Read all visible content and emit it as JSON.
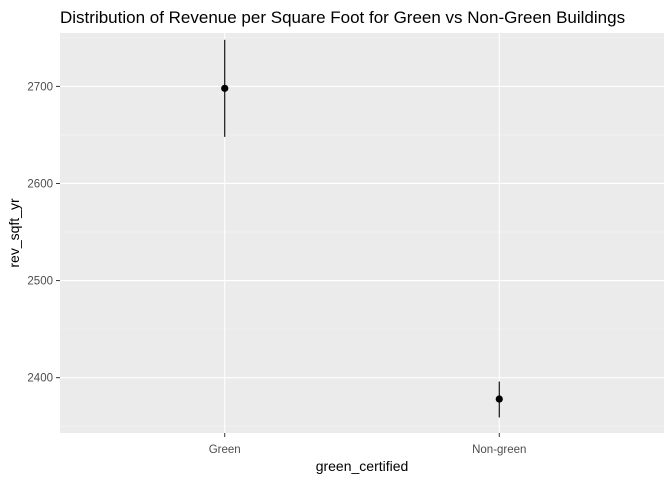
{
  "chart_data": {
    "type": "pointrange",
    "title": "Distribution of Revenue per Square Foot for Green vs Non-Green Buildings",
    "xlabel": "green_certified",
    "ylabel": "rev_sqft_yr",
    "categories": [
      "Green",
      "Non-green"
    ],
    "points": [
      {
        "category": "Green",
        "y": 2698,
        "ymin": 2648,
        "ymax": 2748
      },
      {
        "category": "Non-green",
        "y": 2378,
        "ymin": 2359,
        "ymax": 2396
      }
    ],
    "ylim": [
      2343,
      2755
    ],
    "y_ticks": [
      2400,
      2500,
      2600,
      2700
    ],
    "grid": true,
    "legend": "none",
    "colors": {
      "panel": "#ebebeb",
      "grid_major": "#ffffff",
      "grid_minor": "#f5f5f5",
      "tick": "#333333",
      "point": "#000000"
    }
  }
}
